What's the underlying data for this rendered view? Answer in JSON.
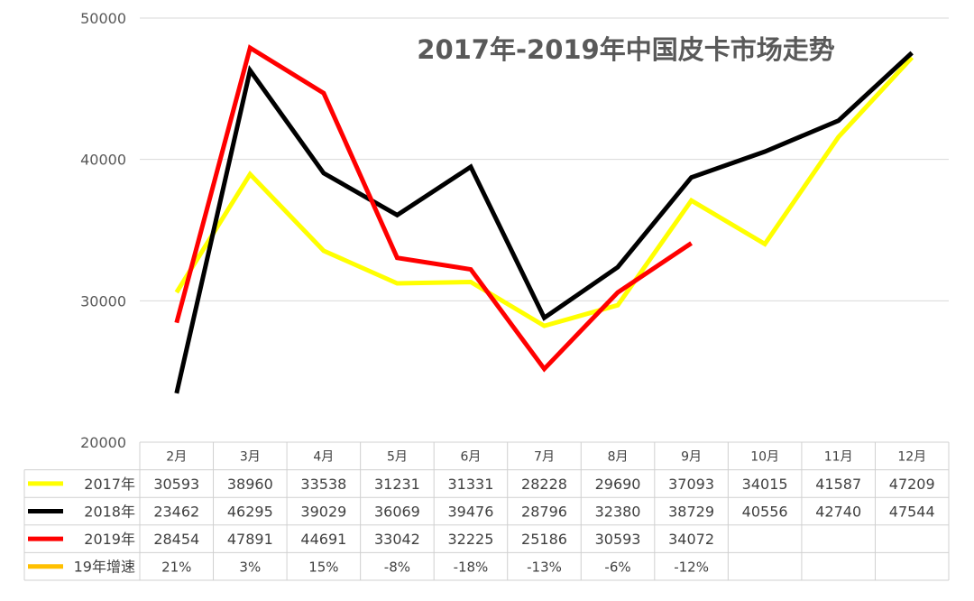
{
  "chart_data": {
    "type": "line",
    "title": "2017年-2019年中国皮卡市场走势",
    "categories": [
      "2月",
      "3月",
      "4月",
      "5月",
      "6月",
      "7月",
      "8月",
      "9月",
      "10月",
      "11月",
      "12月"
    ],
    "ylim": [
      20000,
      50000
    ],
    "yticks": [
      20000,
      30000,
      40000,
      50000
    ],
    "grid": true,
    "legend": "data-table",
    "series": [
      {
        "name": "2017年",
        "color": "#FFFF00",
        "values": [
          30593,
          38960,
          33538,
          31231,
          31331,
          28228,
          29690,
          37093,
          34015,
          41587,
          47209
        ]
      },
      {
        "name": "2018年",
        "color": "#000000",
        "values": [
          23462,
          46295,
          39029,
          36069,
          39476,
          28796,
          32380,
          38729,
          40556,
          42740,
          47544
        ]
      },
      {
        "name": "2019年",
        "color": "#FF0000",
        "values": [
          28454,
          47891,
          44691,
          33042,
          32225,
          25186,
          30593,
          34072,
          null,
          null,
          null
        ]
      }
    ],
    "growth_row": {
      "name": "19年增速",
      "color": "#FFC000",
      "values": [
        "21%",
        "3%",
        "15%",
        "-8%",
        "-18%",
        "-13%",
        "-6%",
        "-12%",
        "",
        "",
        ""
      ]
    }
  }
}
